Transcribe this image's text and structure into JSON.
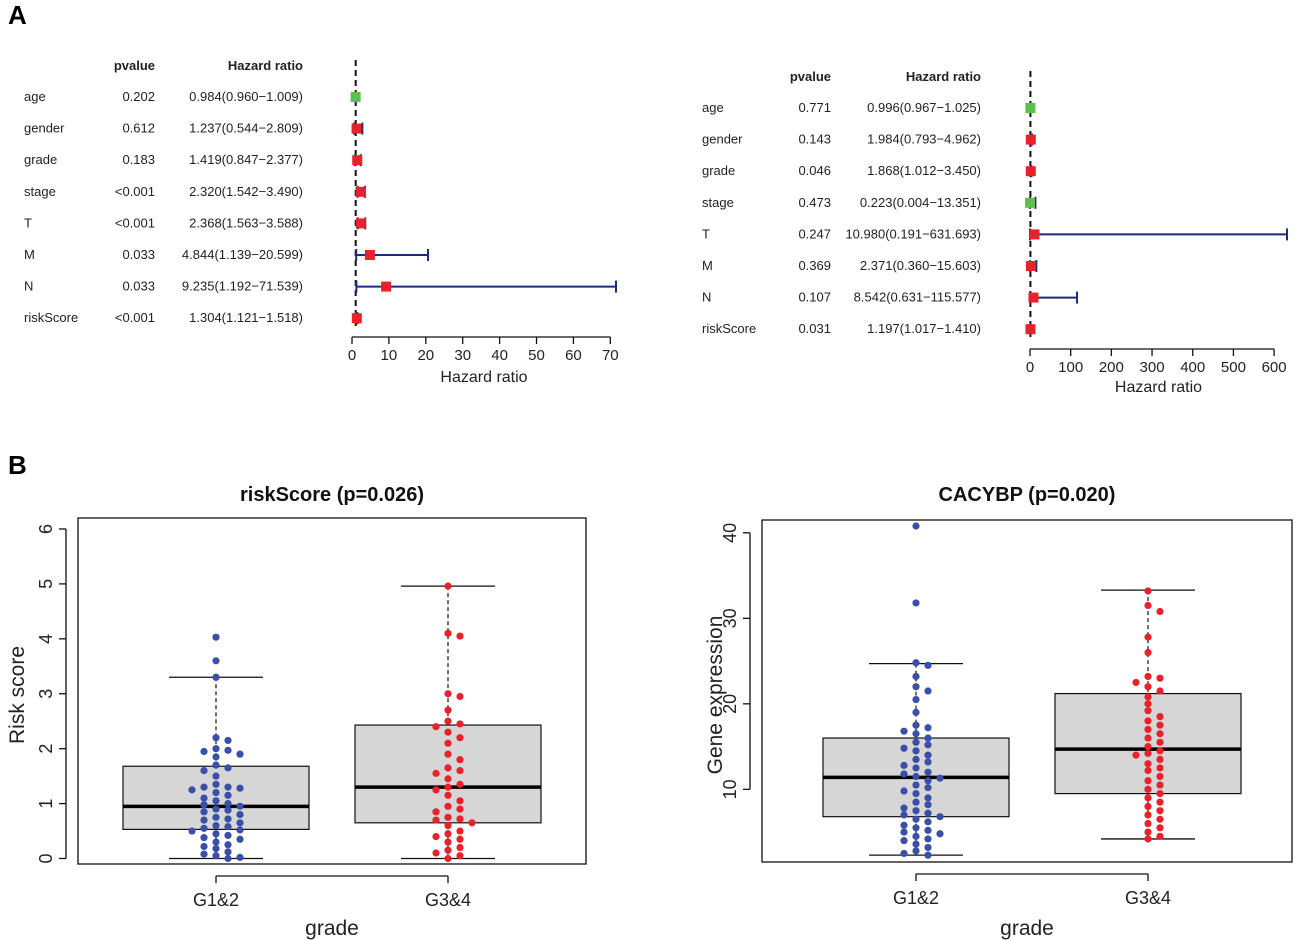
{
  "panel_labels": {
    "a": "A",
    "b": "B"
  },
  "colors": {
    "sig": "#e8212b",
    "nonsig": "#5cc04a",
    "ci": "#1f2a7a",
    "dot_low": "#3a4fa8",
    "dot_high": "#e8212b",
    "box_fill": "#d6d6d6"
  },
  "chart_data": [
    {
      "type": "forest",
      "id": "univariate",
      "header": {
        "pvalue": "pvalue",
        "hr": "Hazard ratio"
      },
      "xlabel": "Hazard ratio",
      "xlim": [
        0,
        71.539
      ],
      "ref_line": 1,
      "ticks": [
        0,
        10,
        20,
        30,
        40,
        50,
        60,
        70
      ],
      "rows": [
        {
          "label": "age",
          "pvalue": "0.202",
          "hr_text": "0.984(0.960−1.009)",
          "hr": 0.984,
          "lo": 0.96,
          "hi": 1.009
        },
        {
          "label": "gender",
          "pvalue": "0.612",
          "hr_text": "1.237(0.544−2.809)",
          "hr": 1.237,
          "lo": 0.544,
          "hi": 2.809
        },
        {
          "label": "grade",
          "pvalue": "0.183",
          "hr_text": "1.419(0.847−2.377)",
          "hr": 1.419,
          "lo": 0.847,
          "hi": 2.377
        },
        {
          "label": "stage",
          "pvalue": "<0.001",
          "hr_text": "2.320(1.542−3.490)",
          "hr": 2.32,
          "lo": 1.542,
          "hi": 3.49
        },
        {
          "label": "T",
          "pvalue": "<0.001",
          "hr_text": "2.368(1.563−3.588)",
          "hr": 2.368,
          "lo": 1.563,
          "hi": 3.588
        },
        {
          "label": "M",
          "pvalue": "0.033",
          "hr_text": "4.844(1.139−20.599)",
          "hr": 4.844,
          "lo": 1.139,
          "hi": 20.599
        },
        {
          "label": "N",
          "pvalue": "0.033",
          "hr_text": "9.235(1.192−71.539)",
          "hr": 9.235,
          "lo": 1.192,
          "hi": 71.539
        },
        {
          "label": "riskScore",
          "pvalue": "<0.001",
          "hr_text": "1.304(1.121−1.518)",
          "hr": 1.304,
          "lo": 1.121,
          "hi": 1.518
        }
      ]
    },
    {
      "type": "forest",
      "id": "multivariate",
      "header": {
        "pvalue": "pvalue",
        "hr": "Hazard ratio"
      },
      "xlabel": "Hazard ratio",
      "xlim": [
        0,
        631.693
      ],
      "ref_line": 1,
      "ticks": [
        0,
        100,
        200,
        300,
        400,
        500,
        600
      ],
      "rows": [
        {
          "label": "age",
          "pvalue": "0.771",
          "hr_text": "0.996(0.967−1.025)",
          "hr": 0.996,
          "lo": 0.967,
          "hi": 1.025
        },
        {
          "label": "gender",
          "pvalue": "0.143",
          "hr_text": "1.984(0.793−4.962)",
          "hr": 1.984,
          "lo": 0.793,
          "hi": 4.962
        },
        {
          "label": "grade",
          "pvalue": "0.046",
          "hr_text": "1.868(1.012−3.450)",
          "hr": 1.868,
          "lo": 1.012,
          "hi": 3.45
        },
        {
          "label": "stage",
          "pvalue": "0.473",
          "hr_text": "0.223(0.004−13.351)",
          "hr": 0.223,
          "lo": 0.004,
          "hi": 13.351
        },
        {
          "label": "T",
          "pvalue": "0.247",
          "hr_text": "10.980(0.191−631.693)",
          "hr": 10.98,
          "lo": 0.191,
          "hi": 631.693
        },
        {
          "label": "M",
          "pvalue": "0.369",
          "hr_text": "2.371(0.360−15.603)",
          "hr": 2.371,
          "lo": 0.36,
          "hi": 15.603
        },
        {
          "label": "N",
          "pvalue": "0.107",
          "hr_text": "8.542(0.631−115.577)",
          "hr": 8.542,
          "lo": 0.631,
          "hi": 115.577
        },
        {
          "label": "riskScore",
          "pvalue": "0.031",
          "hr_text": "1.197(1.017−1.410)",
          "hr": 1.197,
          "lo": 1.017,
          "hi": 1.41
        }
      ]
    },
    {
      "type": "box",
      "id": "riskscore-box",
      "title": "riskScore (p=0.026)",
      "xlabel": "grade",
      "ylabel": "Risk score",
      "ylim": [
        -0.1,
        6.2
      ],
      "yticks": [
        0,
        1,
        2,
        3,
        4,
        5,
        6
      ],
      "groups": [
        {
          "name": "G1&2",
          "min": 0.0,
          "q1": 0.53,
          "median": 0.95,
          "q3": 1.68,
          "max": 3.3,
          "points": [
            4.03,
            3.6,
            3.3,
            2.2,
            2.15,
            2.0,
            1.97,
            1.95,
            1.9,
            1.85,
            1.7,
            1.65,
            1.6,
            1.5,
            1.35,
            1.3,
            1.3,
            1.28,
            1.25,
            1.2,
            1.15,
            1.1,
            1.05,
            1.0,
            0.98,
            0.95,
            0.9,
            0.88,
            0.85,
            0.8,
            0.75,
            0.72,
            0.7,
            0.65,
            0.6,
            0.58,
            0.55,
            0.52,
            0.5,
            0.45,
            0.42,
            0.38,
            0.35,
            0.3,
            0.25,
            0.22,
            0.18,
            0.12,
            0.08,
            0.05,
            0.02,
            0.0
          ]
        },
        {
          "name": "G3&4",
          "min": 0.0,
          "q1": 0.65,
          "median": 1.3,
          "q3": 2.43,
          "max": 4.96,
          "points": [
            4.96,
            4.1,
            4.05,
            3.0,
            2.95,
            2.7,
            2.5,
            2.45,
            2.4,
            2.3,
            2.2,
            2.1,
            1.9,
            1.8,
            1.65,
            1.6,
            1.55,
            1.45,
            1.35,
            1.3,
            1.25,
            1.15,
            1.05,
            0.95,
            0.9,
            0.85,
            0.75,
            0.72,
            0.7,
            0.65,
            0.6,
            0.5,
            0.45,
            0.4,
            0.35,
            0.3,
            0.2,
            0.15,
            0.1,
            0.05,
            0.0
          ]
        }
      ]
    },
    {
      "type": "box",
      "id": "cacybp-box",
      "title": "CACYBP (p=0.020)",
      "xlabel": "grade",
      "ylabel": "Gene expression",
      "ylim": [
        1.5,
        41.5
      ],
      "yticks": [
        10,
        20,
        30,
        40
      ],
      "groups": [
        {
          "name": "G1&2",
          "min": 2.3,
          "q1": 6.8,
          "median": 11.4,
          "q3": 16.0,
          "max": 24.7,
          "points": [
            40.8,
            31.8,
            24.8,
            24.5,
            23.2,
            22.0,
            21.5,
            20.5,
            19.0,
            17.5,
            17.2,
            16.8,
            16.5,
            16.0,
            15.5,
            15.2,
            14.8,
            14.5,
            14.0,
            13.5,
            13.2,
            12.8,
            12.5,
            12.0,
            11.8,
            11.5,
            11.3,
            11.0,
            10.5,
            10.2,
            9.8,
            9.5,
            9.0,
            8.5,
            8.2,
            7.8,
            7.5,
            7.2,
            7.0,
            6.8,
            6.5,
            6.2,
            5.8,
            5.5,
            5.2,
            5.0,
            4.8,
            4.5,
            4.2,
            4.0,
            3.6,
            3.2,
            2.8,
            2.5,
            2.3
          ]
        },
        {
          "name": "G3&4",
          "min": 4.2,
          "q1": 9.5,
          "median": 14.7,
          "q3": 21.2,
          "max": 33.3,
          "points": [
            33.2,
            31.5,
            30.8,
            27.8,
            26.0,
            23.2,
            23.0,
            22.5,
            22.0,
            21.5,
            20.8,
            20.0,
            19.2,
            18.5,
            18.0,
            17.5,
            17.0,
            16.5,
            16.0,
            15.5,
            15.0,
            14.5,
            14.2,
            14.0,
            13.5,
            13.0,
            12.5,
            12.2,
            11.5,
            11.0,
            10.5,
            10.0,
            9.5,
            9.0,
            8.5,
            8.0,
            7.5,
            7.0,
            6.5,
            6.0,
            5.5,
            5.0,
            4.5,
            4.2
          ]
        }
      ]
    }
  ]
}
